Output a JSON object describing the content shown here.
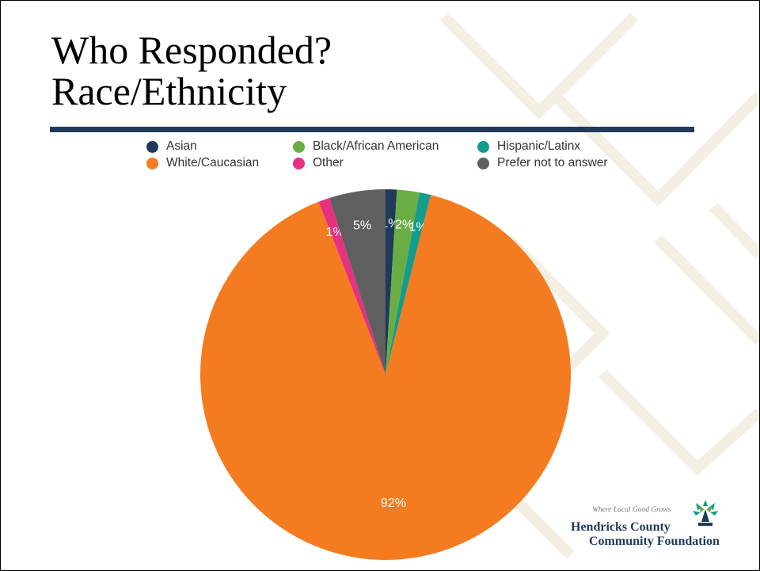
{
  "title": {
    "line1": "Who Responded?",
    "line2": "Race/Ethnicity"
  },
  "colors": {
    "title_rule": "#1f3a5a",
    "background_pattern": "#f3efe2"
  },
  "chart_data": {
    "type": "pie",
    "title": "",
    "legend_position": "top",
    "slices": [
      {
        "label": "Asian",
        "value": 1,
        "display": "1%",
        "color": "#1f3a5a"
      },
      {
        "label": "Black/African American",
        "value": 2,
        "display": "2%",
        "color": "#6aad45"
      },
      {
        "label": "Hispanic/Latinx",
        "value": 1,
        "display": "1%",
        "color": "#139b8b"
      },
      {
        "label": "White/Caucasian",
        "value": 92,
        "display": "92%",
        "color": "#f47b20"
      },
      {
        "label": "Other",
        "value": 1,
        "display": "1%",
        "color": "#e6317f"
      },
      {
        "label": "Prefer not to answer",
        "value": 5,
        "display": "5%",
        "color": "#5f5f5f"
      }
    ],
    "legend": [
      {
        "label": "Asian",
        "color": "#1f3a5a"
      },
      {
        "label": "Black/African American",
        "color": "#6aad45"
      },
      {
        "label": "Hispanic/Latinx",
        "color": "#139b8b"
      },
      {
        "label": "White/Caucasian",
        "color": "#f47b20"
      },
      {
        "label": "Other",
        "color": "#e6317f"
      },
      {
        "label": "Prefer not to answer",
        "color": "#5f5f5f"
      }
    ]
  },
  "logo": {
    "tagline": "Where Local Good Grows",
    "name_line1": "Hendricks County",
    "name_line2": "Community Foundation",
    "icon": "tree-icon"
  }
}
